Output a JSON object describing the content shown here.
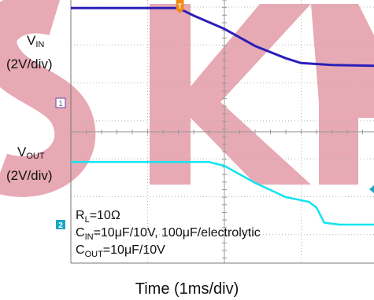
{
  "chart_data": {
    "type": "line",
    "xlabel": "Time (1ms/div)",
    "x_unit": "ms",
    "xlim": [
      -1,
      4.6
    ],
    "channels": [
      {
        "name": "VIN",
        "label_main": "V",
        "label_sub": "IN",
        "scale_label": "(2V/div)",
        "marker": "1",
        "color": "#2b1fb8",
        "unit": "V",
        "volts_per_div": 2,
        "x": [
          -1,
          0.4,
          0.6,
          1.0,
          1.4,
          1.8,
          2.0,
          2.4,
          3.0,
          3.6,
          4.0,
          4.6
        ],
        "y": [
          5.0,
          5.0,
          4.6,
          3.9,
          3.0,
          2.35,
          2.1,
          2.0,
          1.95,
          1.92,
          1.92,
          1.92
        ]
      },
      {
        "name": "VOUT",
        "label_main": "V",
        "label_sub": "OUT",
        "scale_label": "(2V/div)",
        "marker": "2",
        "color": "#12e4ee",
        "unit": "V",
        "volts_per_div": 2,
        "x": [
          -1,
          0.8,
          1.0,
          1.4,
          1.8,
          2.1,
          2.2,
          2.3,
          2.5,
          3.0,
          3.6,
          4.0,
          4.6
        ],
        "y": [
          3.3,
          3.3,
          3.1,
          2.2,
          1.45,
          1.2,
          0.9,
          0.1,
          0.0,
          0.0,
          0.0,
          0.0,
          0.0
        ]
      }
    ],
    "annotations": [
      {
        "pre": "R",
        "sub": "L",
        "post": "=10Ω"
      },
      {
        "pre": "C",
        "sub": "IN",
        "post": "=10μF/10V, 100μF/electrolytic"
      },
      {
        "pre": "C",
        "sub": "OUT",
        "post": "=10μF/10V"
      }
    ],
    "trigger_marker": "T",
    "watermark": "SKY"
  },
  "colors": {
    "grid": "#b4b4b4",
    "watermark": "#e39aa6",
    "vin": "#2b1fb8",
    "vout": "#12e4ee",
    "trigger": "#f08a12"
  }
}
